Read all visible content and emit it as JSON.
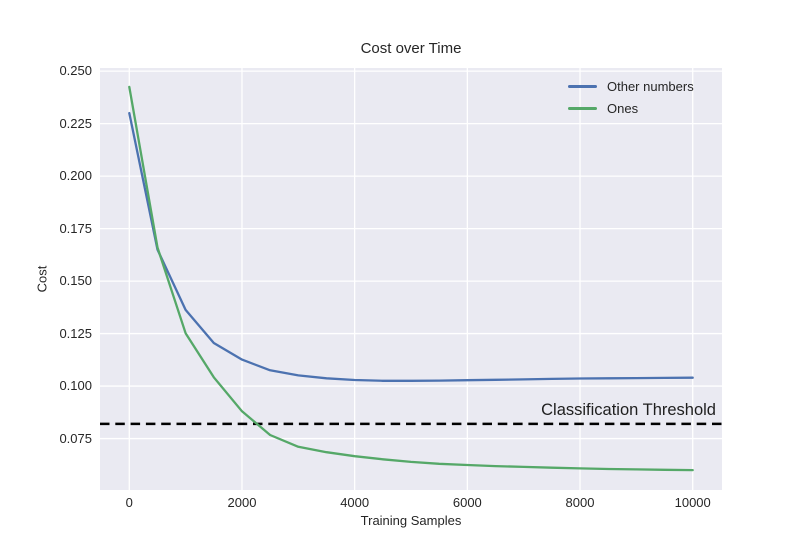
{
  "chart_data": {
    "type": "line",
    "title": "Cost over Time",
    "xlabel": "Training Samples",
    "ylabel": "Cost",
    "x": [
      0,
      500,
      1000,
      1500,
      2000,
      2500,
      3000,
      3500,
      4000,
      4500,
      5000,
      5500,
      6000,
      6500,
      7000,
      7500,
      8000,
      8500,
      9000,
      9500,
      10000
    ],
    "series": [
      {
        "name": "Other numbers",
        "color": "#4C72B0",
        "values": [
          0.23,
          0.165,
          0.1363,
          0.1205,
          0.1126,
          0.1075,
          0.1051,
          0.1037,
          0.1029,
          0.1025,
          0.1025,
          0.1026,
          0.1028,
          0.103,
          0.1032,
          0.1034,
          0.1036,
          0.1037,
          0.1038,
          0.1039,
          0.104
        ]
      },
      {
        "name": "Ones",
        "color": "#55A868",
        "values": [
          0.2425,
          0.166,
          0.1252,
          0.1042,
          0.088,
          0.0767,
          0.0711,
          0.0685,
          0.0666,
          0.0651,
          0.0639,
          0.063,
          0.0624,
          0.0619,
          0.0615,
          0.0611,
          0.0608,
          0.0605,
          0.0603,
          0.0601,
          0.06
        ]
      }
    ],
    "threshold": {
      "label": "Classification Threshold",
      "value": 0.082,
      "color": "#000000",
      "style": "dashed"
    },
    "axes": {
      "xlim": [
        -520,
        10520
      ],
      "ylim": [
        0.0505,
        0.2515
      ],
      "x_ticks": [
        0,
        2000,
        4000,
        6000,
        8000,
        10000
      ],
      "x_tick_labels": [
        "0",
        "2000",
        "4000",
        "6000",
        "8000",
        "10000"
      ],
      "y_ticks": [
        0.075,
        0.1,
        0.125,
        0.15,
        0.175,
        0.2,
        0.225,
        0.25
      ],
      "y_tick_labels": [
        "0.075",
        "0.100",
        "0.125",
        "0.150",
        "0.175",
        "0.200",
        "0.225",
        "0.250"
      ],
      "grid": true,
      "legend_position": "upper right"
    },
    "styles": {
      "plot_bg": "#EAEAF2",
      "grid_color": "#FFFFFF",
      "fig_bg": "#FFFFFF",
      "text_color": "#262626"
    }
  }
}
